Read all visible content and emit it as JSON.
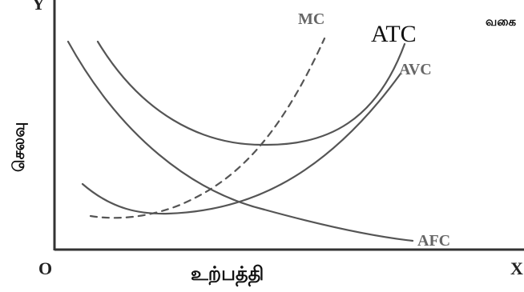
{
  "diagram": {
    "axes": {
      "origin_label": "O",
      "y_axis_letter": "Y",
      "x_axis_letter": "X",
      "x_axis_title": "உற்பத்தி",
      "y_axis_title": "செலவு",
      "corner_note": "வகை"
    },
    "curves": {
      "mc": "MC",
      "atc": "ATC",
      "avc": "AVC",
      "afc": "AFC"
    }
  }
}
